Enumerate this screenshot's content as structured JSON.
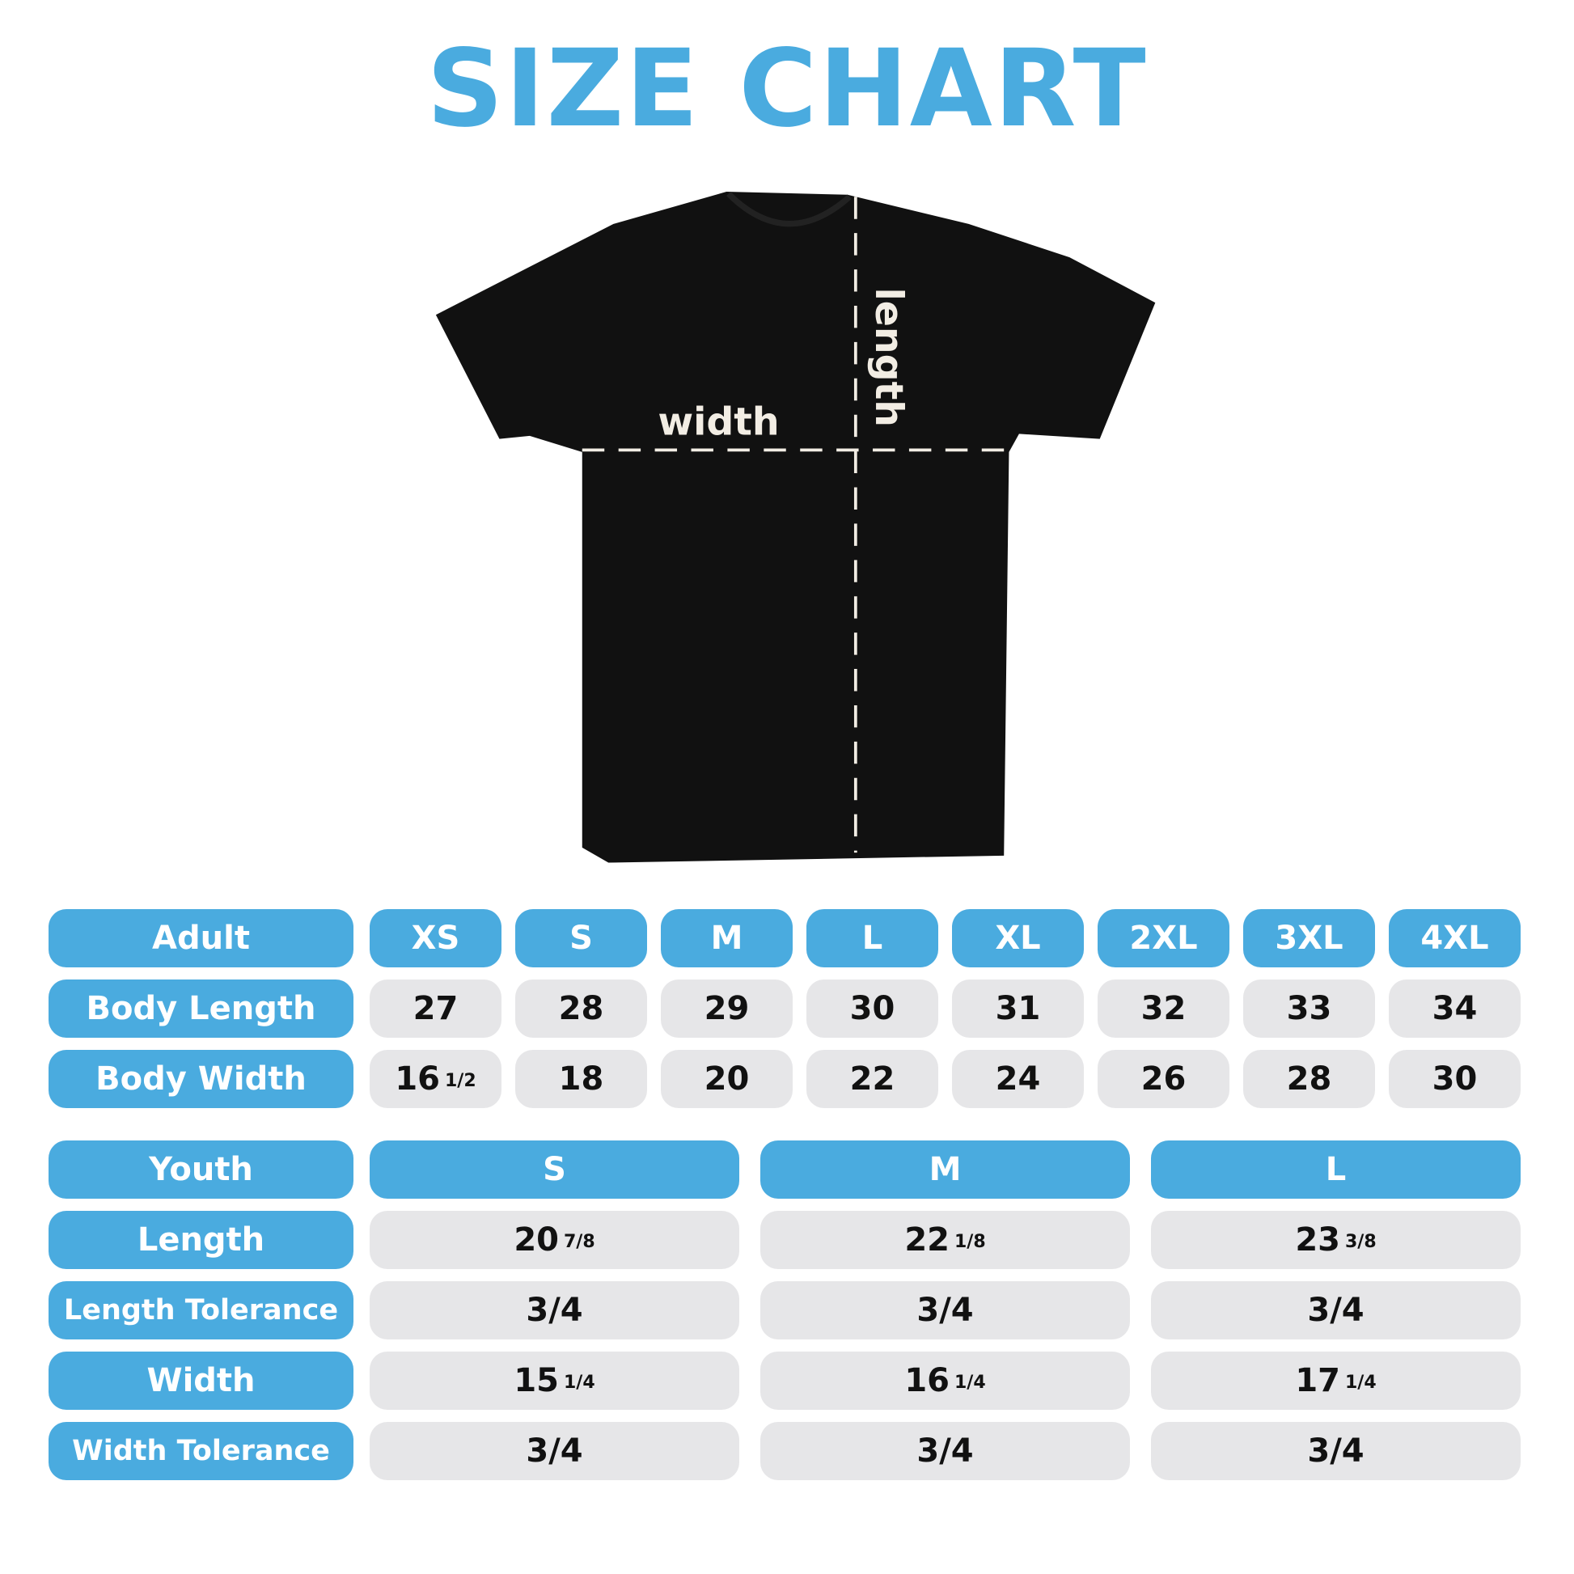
{
  "title": "SIZE CHART",
  "diagram": {
    "width_label": "width",
    "length_label": "length",
    "shirt_color": "#111111"
  },
  "colors": {
    "accent": "#4aabdf",
    "cell_bg": "#e6e6e8"
  },
  "adult": {
    "header": "Adult",
    "sizes": [
      "XS",
      "S",
      "M",
      "L",
      "XL",
      "2XL",
      "3XL",
      "4XL"
    ],
    "rows": [
      {
        "label": "Body Length",
        "values": [
          {
            "v": "27"
          },
          {
            "v": "28"
          },
          {
            "v": "29"
          },
          {
            "v": "30"
          },
          {
            "v": "31"
          },
          {
            "v": "32"
          },
          {
            "v": "33"
          },
          {
            "v": "34"
          }
        ]
      },
      {
        "label": "Body Width",
        "values": [
          {
            "v": "16",
            "f": "1/2"
          },
          {
            "v": "18"
          },
          {
            "v": "20"
          },
          {
            "v": "22"
          },
          {
            "v": "24"
          },
          {
            "v": "26"
          },
          {
            "v": "28"
          },
          {
            "v": "30"
          }
        ]
      }
    ]
  },
  "youth": {
    "header": "Youth",
    "sizes": [
      "S",
      "M",
      "L"
    ],
    "rows": [
      {
        "label": "Length",
        "values": [
          {
            "v": "20",
            "f": "7/8"
          },
          {
            "v": "22",
            "f": "1/8"
          },
          {
            "v": "23",
            "f": "3/8"
          }
        ]
      },
      {
        "label": "Length Tolerance",
        "values": [
          {
            "v": "3/4"
          },
          {
            "v": "3/4"
          },
          {
            "v": "3/4"
          }
        ]
      },
      {
        "label": "Width",
        "values": [
          {
            "v": "15",
            "f": "1/4"
          },
          {
            "v": "16",
            "f": "1/4"
          },
          {
            "v": "17",
            "f": "1/4"
          }
        ]
      },
      {
        "label": "Width Tolerance",
        "values": [
          {
            "v": "3/4"
          },
          {
            "v": "3/4"
          },
          {
            "v": "3/4"
          }
        ]
      }
    ]
  }
}
